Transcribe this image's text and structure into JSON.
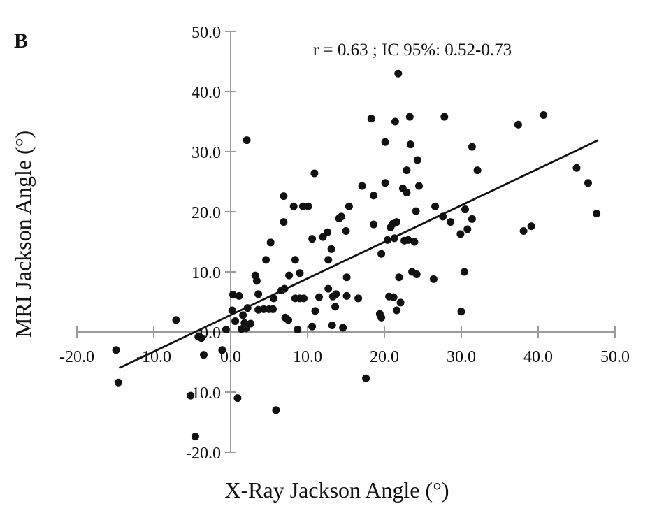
{
  "panel_label": "B",
  "annotation": "r = 0.63 ; IC 95%: 0.52-0.73",
  "chart_data": {
    "type": "scatter",
    "xlabel": "X-Ray Jackson Angle (°)",
    "ylabel": "MRI Jackson Angle (°)",
    "xlim": [
      -20,
      50
    ],
    "ylim": [
      -20,
      50
    ],
    "x_ticks": [
      "-20.0",
      "-10.0",
      "0.0",
      "10.0",
      "20.0",
      "30.0",
      "40.0",
      "50.0"
    ],
    "y_ticks": [
      "50.0",
      "40.0",
      "30.0",
      "20.0",
      "10.0",
      "0.0",
      "-10.0",
      "-20.0"
    ],
    "grid": false,
    "fit_line": {
      "x": [
        -14.5,
        47.8
      ],
      "y": [
        -6.0,
        31.9
      ]
    },
    "points": [
      [
        -14.9,
        -3.0
      ],
      [
        -14.6,
        -8.4
      ],
      [
        -7.1,
        2.0
      ],
      [
        -5.2,
        -10.6
      ],
      [
        -4.6,
        -17.4
      ],
      [
        -4.2,
        -0.8
      ],
      [
        -3.8,
        -1.0
      ],
      [
        -3.5,
        -3.8
      ],
      [
        -1.1,
        -3.0
      ],
      [
        -0.6,
        0.4
      ],
      [
        0.2,
        3.6
      ],
      [
        0.3,
        6.2
      ],
      [
        0.6,
        1.8
      ],
      [
        0.9,
        -11.0
      ],
      [
        1.1,
        6.0
      ],
      [
        1.4,
        0.5
      ],
      [
        1.6,
        2.8
      ],
      [
        1.8,
        1.5
      ],
      [
        2.0,
        0.6
      ],
      [
        2.1,
        31.9
      ],
      [
        2.2,
        4.0
      ],
      [
        2.6,
        1.4
      ],
      [
        3.2,
        9.4
      ],
      [
        3.4,
        8.5
      ],
      [
        3.6,
        6.3
      ],
      [
        3.6,
        3.7
      ],
      [
        4.3,
        3.8
      ],
      [
        4.6,
        12.0
      ],
      [
        5.0,
        3.8
      ],
      [
        5.2,
        14.9
      ],
      [
        5.5,
        3.8
      ],
      [
        5.6,
        5.6
      ],
      [
        5.9,
        -13.0
      ],
      [
        6.6,
        6.9
      ],
      [
        6.9,
        18.3
      ],
      [
        6.9,
        22.6
      ],
      [
        7.0,
        7.2
      ],
      [
        7.1,
        2.4
      ],
      [
        7.5,
        2.0
      ],
      [
        7.6,
        9.4
      ],
      [
        8.2,
        20.9
      ],
      [
        8.4,
        5.6
      ],
      [
        8.4,
        12.0
      ],
      [
        8.7,
        0.4
      ],
      [
        9.0,
        5.6
      ],
      [
        9.0,
        9.8
      ],
      [
        9.4,
        20.9
      ],
      [
        9.5,
        5.6
      ],
      [
        10.1,
        20.9
      ],
      [
        10.6,
        0.9
      ],
      [
        10.6,
        15.5
      ],
      [
        10.9,
        26.4
      ],
      [
        11.0,
        3.5
      ],
      [
        11.5,
        5.8
      ],
      [
        12.0,
        15.8
      ],
      [
        12.6,
        16.6
      ],
      [
        12.7,
        12.0
      ],
      [
        12.7,
        7.2
      ],
      [
        13.1,
        13.8
      ],
      [
        13.2,
        1.1
      ],
      [
        13.3,
        5.9
      ],
      [
        13.6,
        4.2
      ],
      [
        13.7,
        6.3
      ],
      [
        14.1,
        18.9
      ],
      [
        14.4,
        19.2
      ],
      [
        14.6,
        0.7
      ],
      [
        15.0,
        16.8
      ],
      [
        15.1,
        9.1
      ],
      [
        15.1,
        6.0
      ],
      [
        15.4,
        20.9
      ],
      [
        16.6,
        5.6
      ],
      [
        17.1,
        24.3
      ],
      [
        17.6,
        -7.7
      ],
      [
        18.3,
        35.5
      ],
      [
        18.6,
        17.9
      ],
      [
        18.6,
        22.7
      ],
      [
        19.4,
        3.0
      ],
      [
        19.6,
        2.4
      ],
      [
        19.6,
        13.0
      ],
      [
        20.1,
        24.8
      ],
      [
        20.1,
        31.6
      ],
      [
        20.4,
        15.3
      ],
      [
        20.6,
        5.9
      ],
      [
        20.8,
        17.4
      ],
      [
        21.1,
        18.0
      ],
      [
        21.2,
        5.8
      ],
      [
        21.3,
        15.6
      ],
      [
        21.4,
        35.0
      ],
      [
        21.6,
        3.6
      ],
      [
        21.6,
        18.3
      ],
      [
        21.8,
        43.0
      ],
      [
        21.9,
        9.1
      ],
      [
        22.1,
        4.9
      ],
      [
        22.4,
        23.9
      ],
      [
        22.6,
        15.2
      ],
      [
        22.9,
        23.2
      ],
      [
        22.9,
        26.9
      ],
      [
        23.1,
        15.3
      ],
      [
        23.3,
        35.8
      ],
      [
        23.4,
        31.2
      ],
      [
        23.6,
        10.0
      ],
      [
        23.9,
        15.0
      ],
      [
        24.1,
        20.1
      ],
      [
        24.2,
        9.6
      ],
      [
        24.3,
        28.6
      ],
      [
        24.5,
        24.3
      ],
      [
        26.4,
        8.8
      ],
      [
        26.6,
        20.9
      ],
      [
        27.6,
        19.2
      ],
      [
        27.8,
        35.8
      ],
      [
        28.6,
        18.3
      ],
      [
        29.9,
        16.3
      ],
      [
        30.0,
        3.4
      ],
      [
        30.4,
        10.0
      ],
      [
        30.5,
        20.4
      ],
      [
        30.8,
        17.1
      ],
      [
        31.4,
        30.8
      ],
      [
        31.4,
        18.8
      ],
      [
        32.1,
        26.9
      ],
      [
        37.4,
        34.5
      ],
      [
        38.1,
        16.8
      ],
      [
        39.1,
        17.6
      ],
      [
        40.7,
        36.1
      ],
      [
        45.0,
        27.3
      ],
      [
        46.5,
        24.8
      ],
      [
        47.6,
        19.7
      ]
    ]
  }
}
